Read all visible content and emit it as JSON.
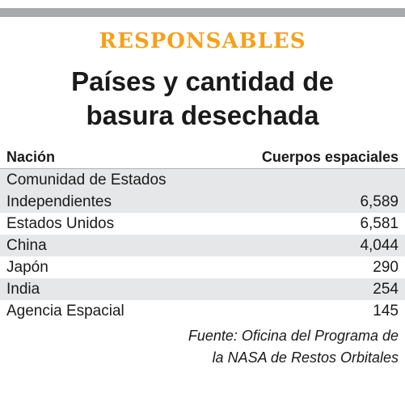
{
  "kicker": "RESPONSABLES",
  "headline": [
    "Países y cantidad de",
    "basura desechada"
  ],
  "colors": {
    "accent": "#f5a01a",
    "topbar": "#a7a9ac",
    "row_shade": "#e6e7e8"
  },
  "chart_data": {
    "type": "table",
    "columns": [
      "Nación",
      "Cuerpos espaciales"
    ],
    "rows": [
      {
        "name": [
          "Comunidad de Estados",
          "Independientes"
        ],
        "value": "6,589"
      },
      {
        "name": [
          "Estados Unidos"
        ],
        "value": "6,581"
      },
      {
        "name": [
          "China"
        ],
        "value": "4,044"
      },
      {
        "name": [
          "Japón"
        ],
        "value": "290"
      },
      {
        "name": [
          "India"
        ],
        "value": "254"
      },
      {
        "name": [
          "Agencia Espacial"
        ],
        "value": "145"
      }
    ]
  },
  "source": [
    "Fuente: Oficina del Programa de",
    "la NASA de Restos Orbitales"
  ]
}
